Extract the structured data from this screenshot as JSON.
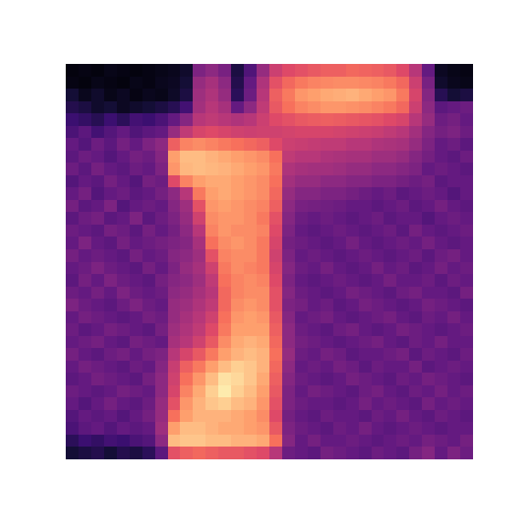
{
  "chart_data": {
    "type": "heatmap",
    "color": "magma",
    "tick_labels": false,
    "zlim": [
      0,
      1
    ],
    "z": [
      [
        0.02,
        0.03,
        0.02,
        0.04,
        0.03,
        0.02,
        0.03,
        0.04,
        0.05,
        0.08,
        0.36,
        0.4,
        0.35,
        0.12,
        0.25,
        0.42,
        0.55,
        0.6,
        0.62,
        0.64,
        0.66,
        0.66,
        0.68,
        0.67,
        0.66,
        0.64,
        0.6,
        0.5,
        0.3,
        0.06,
        0.04,
        0.03
      ],
      [
        0.03,
        0.02,
        0.04,
        0.03,
        0.02,
        0.04,
        0.03,
        0.05,
        0.06,
        0.1,
        0.42,
        0.46,
        0.4,
        0.14,
        0.3,
        0.48,
        0.62,
        0.68,
        0.72,
        0.74,
        0.75,
        0.76,
        0.76,
        0.75,
        0.74,
        0.72,
        0.68,
        0.55,
        0.35,
        0.08,
        0.05,
        0.04
      ],
      [
        0.1,
        0.05,
        0.08,
        0.04,
        0.06,
        0.03,
        0.05,
        0.04,
        0.07,
        0.12,
        0.44,
        0.48,
        0.42,
        0.16,
        0.32,
        0.5,
        0.66,
        0.72,
        0.78,
        0.8,
        0.82,
        0.83,
        0.84,
        0.82,
        0.8,
        0.78,
        0.72,
        0.58,
        0.38,
        0.15,
        0.1,
        0.12
      ],
      [
        0.14,
        0.12,
        0.08,
        0.1,
        0.06,
        0.08,
        0.1,
        0.12,
        0.15,
        0.22,
        0.45,
        0.5,
        0.46,
        0.3,
        0.4,
        0.52,
        0.64,
        0.7,
        0.74,
        0.76,
        0.78,
        0.78,
        0.77,
        0.76,
        0.74,
        0.72,
        0.68,
        0.55,
        0.4,
        0.28,
        0.3,
        0.32
      ],
      [
        0.2,
        0.18,
        0.15,
        0.2,
        0.16,
        0.22,
        0.2,
        0.24,
        0.3,
        0.38,
        0.5,
        0.52,
        0.5,
        0.48,
        0.5,
        0.55,
        0.6,
        0.62,
        0.64,
        0.65,
        0.66,
        0.65,
        0.64,
        0.63,
        0.62,
        0.6,
        0.58,
        0.5,
        0.42,
        0.32,
        0.34,
        0.3
      ],
      [
        0.24,
        0.28,
        0.22,
        0.26,
        0.3,
        0.25,
        0.28,
        0.3,
        0.42,
        0.52,
        0.58,
        0.6,
        0.58,
        0.56,
        0.55,
        0.56,
        0.56,
        0.57,
        0.58,
        0.58,
        0.58,
        0.57,
        0.56,
        0.55,
        0.54,
        0.52,
        0.5,
        0.45,
        0.38,
        0.34,
        0.36,
        0.32
      ],
      [
        0.3,
        0.26,
        0.32,
        0.28,
        0.34,
        0.3,
        0.36,
        0.4,
        0.66,
        0.74,
        0.76,
        0.74,
        0.72,
        0.7,
        0.68,
        0.66,
        0.6,
        0.55,
        0.54,
        0.53,
        0.52,
        0.52,
        0.5,
        0.5,
        0.48,
        0.47,
        0.46,
        0.42,
        0.36,
        0.3,
        0.32,
        0.28
      ],
      [
        0.28,
        0.32,
        0.3,
        0.26,
        0.3,
        0.34,
        0.32,
        0.38,
        0.8,
        0.86,
        0.86,
        0.84,
        0.82,
        0.8,
        0.78,
        0.76,
        0.7,
        0.52,
        0.5,
        0.5,
        0.48,
        0.47,
        0.46,
        0.46,
        0.44,
        0.44,
        0.42,
        0.38,
        0.34,
        0.3,
        0.28,
        0.32
      ],
      [
        0.32,
        0.28,
        0.34,
        0.3,
        0.28,
        0.32,
        0.3,
        0.36,
        0.78,
        0.85,
        0.86,
        0.85,
        0.84,
        0.82,
        0.8,
        0.78,
        0.72,
        0.48,
        0.46,
        0.45,
        0.45,
        0.44,
        0.42,
        0.42,
        0.4,
        0.4,
        0.38,
        0.36,
        0.3,
        0.32,
        0.3,
        0.28
      ],
      [
        0.26,
        0.3,
        0.28,
        0.34,
        0.3,
        0.26,
        0.34,
        0.32,
        0.6,
        0.74,
        0.8,
        0.82,
        0.82,
        0.8,
        0.78,
        0.76,
        0.7,
        0.45,
        0.42,
        0.42,
        0.4,
        0.4,
        0.38,
        0.38,
        0.36,
        0.36,
        0.34,
        0.32,
        0.34,
        0.28,
        0.3,
        0.3
      ],
      [
        0.3,
        0.34,
        0.26,
        0.3,
        0.32,
        0.28,
        0.3,
        0.34,
        0.4,
        0.5,
        0.72,
        0.8,
        0.82,
        0.8,
        0.78,
        0.76,
        0.68,
        0.42,
        0.38,
        0.38,
        0.36,
        0.36,
        0.34,
        0.32,
        0.3,
        0.32,
        0.28,
        0.3,
        0.32,
        0.3,
        0.26,
        0.3
      ],
      [
        0.34,
        0.28,
        0.3,
        0.36,
        0.26,
        0.3,
        0.32,
        0.3,
        0.38,
        0.44,
        0.62,
        0.78,
        0.8,
        0.78,
        0.76,
        0.74,
        0.66,
        0.4,
        0.35,
        0.34,
        0.33,
        0.32,
        0.3,
        0.3,
        0.28,
        0.3,
        0.32,
        0.28,
        0.3,
        0.34,
        0.3,
        0.28
      ],
      [
        0.28,
        0.32,
        0.34,
        0.28,
        0.3,
        0.36,
        0.28,
        0.32,
        0.36,
        0.42,
        0.56,
        0.76,
        0.78,
        0.78,
        0.76,
        0.72,
        0.62,
        0.38,
        0.32,
        0.3,
        0.32,
        0.3,
        0.28,
        0.3,
        0.32,
        0.28,
        0.3,
        0.3,
        0.26,
        0.3,
        0.32,
        0.3
      ],
      [
        0.32,
        0.3,
        0.28,
        0.34,
        0.32,
        0.28,
        0.34,
        0.3,
        0.34,
        0.4,
        0.5,
        0.74,
        0.78,
        0.76,
        0.76,
        0.74,
        0.6,
        0.36,
        0.3,
        0.28,
        0.3,
        0.32,
        0.3,
        0.28,
        0.3,
        0.32,
        0.28,
        0.34,
        0.3,
        0.28,
        0.3,
        0.32
      ],
      [
        0.3,
        0.36,
        0.3,
        0.28,
        0.34,
        0.3,
        0.32,
        0.34,
        0.36,
        0.38,
        0.46,
        0.7,
        0.76,
        0.78,
        0.76,
        0.72,
        0.58,
        0.34,
        0.32,
        0.3,
        0.28,
        0.3,
        0.34,
        0.3,
        0.28,
        0.3,
        0.32,
        0.3,
        0.34,
        0.3,
        0.28,
        0.3
      ],
      [
        0.34,
        0.3,
        0.32,
        0.3,
        0.28,
        0.34,
        0.3,
        0.32,
        0.38,
        0.4,
        0.44,
        0.62,
        0.74,
        0.76,
        0.76,
        0.72,
        0.56,
        0.36,
        0.3,
        0.32,
        0.3,
        0.28,
        0.3,
        0.32,
        0.3,
        0.28,
        0.3,
        0.32,
        0.28,
        0.32,
        0.34,
        0.3
      ],
      [
        0.3,
        0.32,
        0.36,
        0.32,
        0.3,
        0.28,
        0.34,
        0.3,
        0.36,
        0.42,
        0.46,
        0.56,
        0.72,
        0.76,
        0.74,
        0.72,
        0.58,
        0.38,
        0.32,
        0.3,
        0.34,
        0.3,
        0.28,
        0.3,
        0.34,
        0.3,
        0.32,
        0.28,
        0.3,
        0.34,
        0.3,
        0.32
      ],
      [
        0.28,
        0.34,
        0.3,
        0.36,
        0.32,
        0.3,
        0.28,
        0.34,
        0.38,
        0.4,
        0.44,
        0.52,
        0.7,
        0.74,
        0.76,
        0.74,
        0.6,
        0.36,
        0.3,
        0.28,
        0.3,
        0.32,
        0.3,
        0.28,
        0.3,
        0.34,
        0.3,
        0.3,
        0.32,
        0.28,
        0.32,
        0.3
      ],
      [
        0.32,
        0.3,
        0.34,
        0.3,
        0.36,
        0.32,
        0.3,
        0.32,
        0.4,
        0.42,
        0.46,
        0.5,
        0.68,
        0.74,
        0.76,
        0.76,
        0.62,
        0.38,
        0.32,
        0.3,
        0.28,
        0.3,
        0.34,
        0.32,
        0.3,
        0.28,
        0.32,
        0.34,
        0.3,
        0.3,
        0.28,
        0.34
      ],
      [
        0.36,
        0.32,
        0.3,
        0.28,
        0.32,
        0.36,
        0.32,
        0.3,
        0.42,
        0.44,
        0.48,
        0.52,
        0.68,
        0.76,
        0.78,
        0.76,
        0.62,
        0.36,
        0.34,
        0.3,
        0.32,
        0.28,
        0.3,
        0.34,
        0.32,
        0.3,
        0.28,
        0.3,
        0.34,
        0.32,
        0.3,
        0.28
      ],
      [
        0.3,
        0.34,
        0.32,
        0.3,
        0.28,
        0.3,
        0.34,
        0.32,
        0.42,
        0.46,
        0.5,
        0.56,
        0.7,
        0.78,
        0.8,
        0.78,
        0.64,
        0.38,
        0.3,
        0.32,
        0.34,
        0.3,
        0.28,
        0.3,
        0.32,
        0.34,
        0.3,
        0.28,
        0.32,
        0.3,
        0.34,
        0.3
      ],
      [
        0.32,
        0.28,
        0.3,
        0.34,
        0.32,
        0.3,
        0.28,
        0.34,
        0.44,
        0.48,
        0.52,
        0.6,
        0.72,
        0.8,
        0.8,
        0.8,
        0.66,
        0.4,
        0.32,
        0.3,
        0.28,
        0.32,
        0.34,
        0.3,
        0.28,
        0.3,
        0.34,
        0.32,
        0.3,
        0.28,
        0.3,
        0.32
      ],
      [
        0.3,
        0.32,
        0.34,
        0.3,
        0.28,
        0.34,
        0.32,
        0.3,
        0.46,
        0.5,
        0.56,
        0.64,
        0.76,
        0.82,
        0.84,
        0.82,
        0.68,
        0.4,
        0.34,
        0.32,
        0.3,
        0.28,
        0.3,
        0.32,
        0.34,
        0.3,
        0.28,
        0.32,
        0.3,
        0.34,
        0.3,
        0.3
      ],
      [
        0.34,
        0.3,
        0.28,
        0.32,
        0.34,
        0.3,
        0.34,
        0.36,
        0.5,
        0.58,
        0.64,
        0.72,
        0.8,
        0.84,
        0.86,
        0.84,
        0.7,
        0.42,
        0.32,
        0.3,
        0.34,
        0.32,
        0.28,
        0.3,
        0.3,
        0.32,
        0.34,
        0.28,
        0.32,
        0.3,
        0.28,
        0.32
      ],
      [
        0.3,
        0.34,
        0.32,
        0.3,
        0.28,
        0.32,
        0.3,
        0.38,
        0.54,
        0.66,
        0.72,
        0.8,
        0.86,
        0.9,
        0.88,
        0.84,
        0.68,
        0.4,
        0.3,
        0.32,
        0.3,
        0.34,
        0.32,
        0.28,
        0.32,
        0.3,
        0.3,
        0.34,
        0.28,
        0.3,
        0.32,
        0.3
      ],
      [
        0.28,
        0.3,
        0.34,
        0.32,
        0.3,
        0.28,
        0.34,
        0.4,
        0.56,
        0.7,
        0.78,
        0.86,
        0.94,
        0.92,
        0.88,
        0.82,
        0.66,
        0.38,
        0.32,
        0.3,
        0.28,
        0.3,
        0.34,
        0.32,
        0.3,
        0.28,
        0.32,
        0.3,
        0.34,
        0.32,
        0.3,
        0.28
      ],
      [
        0.32,
        0.3,
        0.28,
        0.3,
        0.34,
        0.32,
        0.3,
        0.4,
        0.58,
        0.74,
        0.82,
        0.9,
        0.96,
        0.9,
        0.86,
        0.8,
        0.64,
        0.36,
        0.3,
        0.34,
        0.32,
        0.3,
        0.28,
        0.32,
        0.34,
        0.3,
        0.28,
        0.32,
        0.3,
        0.34,
        0.3,
        0.32
      ],
      [
        0.3,
        0.26,
        0.3,
        0.34,
        0.3,
        0.28,
        0.32,
        0.42,
        0.62,
        0.78,
        0.84,
        0.88,
        0.9,
        0.86,
        0.84,
        0.78,
        0.62,
        0.36,
        0.32,
        0.3,
        0.3,
        0.28,
        0.3,
        0.34,
        0.3,
        0.32,
        0.3,
        0.28,
        0.34,
        0.3,
        0.32,
        0.3
      ],
      [
        0.26,
        0.3,
        0.28,
        0.3,
        0.26,
        0.3,
        0.34,
        0.42,
        0.7,
        0.8,
        0.84,
        0.84,
        0.84,
        0.82,
        0.8,
        0.76,
        0.6,
        0.34,
        0.3,
        0.28,
        0.32,
        0.3,
        0.3,
        0.28,
        0.32,
        0.3,
        0.34,
        0.3,
        0.28,
        0.32,
        0.3,
        0.28
      ],
      [
        0.24,
        0.28,
        0.3,
        0.26,
        0.3,
        0.28,
        0.3,
        0.44,
        0.8,
        0.86,
        0.86,
        0.84,
        0.82,
        0.82,
        0.8,
        0.78,
        0.64,
        0.36,
        0.32,
        0.3,
        0.28,
        0.32,
        0.3,
        0.34,
        0.3,
        0.28,
        0.3,
        0.32,
        0.3,
        0.28,
        0.3,
        0.3
      ],
      [
        0.16,
        0.2,
        0.18,
        0.22,
        0.2,
        0.24,
        0.26,
        0.4,
        0.86,
        0.88,
        0.88,
        0.86,
        0.86,
        0.84,
        0.84,
        0.82,
        0.7,
        0.38,
        0.3,
        0.34,
        0.3,
        0.3,
        0.32,
        0.3,
        0.28,
        0.3,
        0.32,
        0.3,
        0.34,
        0.32,
        0.3,
        0.34
      ],
      [
        0.1,
        0.12,
        0.14,
        0.1,
        0.14,
        0.12,
        0.16,
        0.28,
        0.62,
        0.66,
        0.68,
        0.66,
        0.64,
        0.64,
        0.62,
        0.6,
        0.5,
        0.32,
        0.3,
        0.28,
        0.34,
        0.32,
        0.3,
        0.28,
        0.32,
        0.3,
        0.28,
        0.34,
        0.38,
        0.3,
        0.36,
        0.32
      ]
    ]
  }
}
